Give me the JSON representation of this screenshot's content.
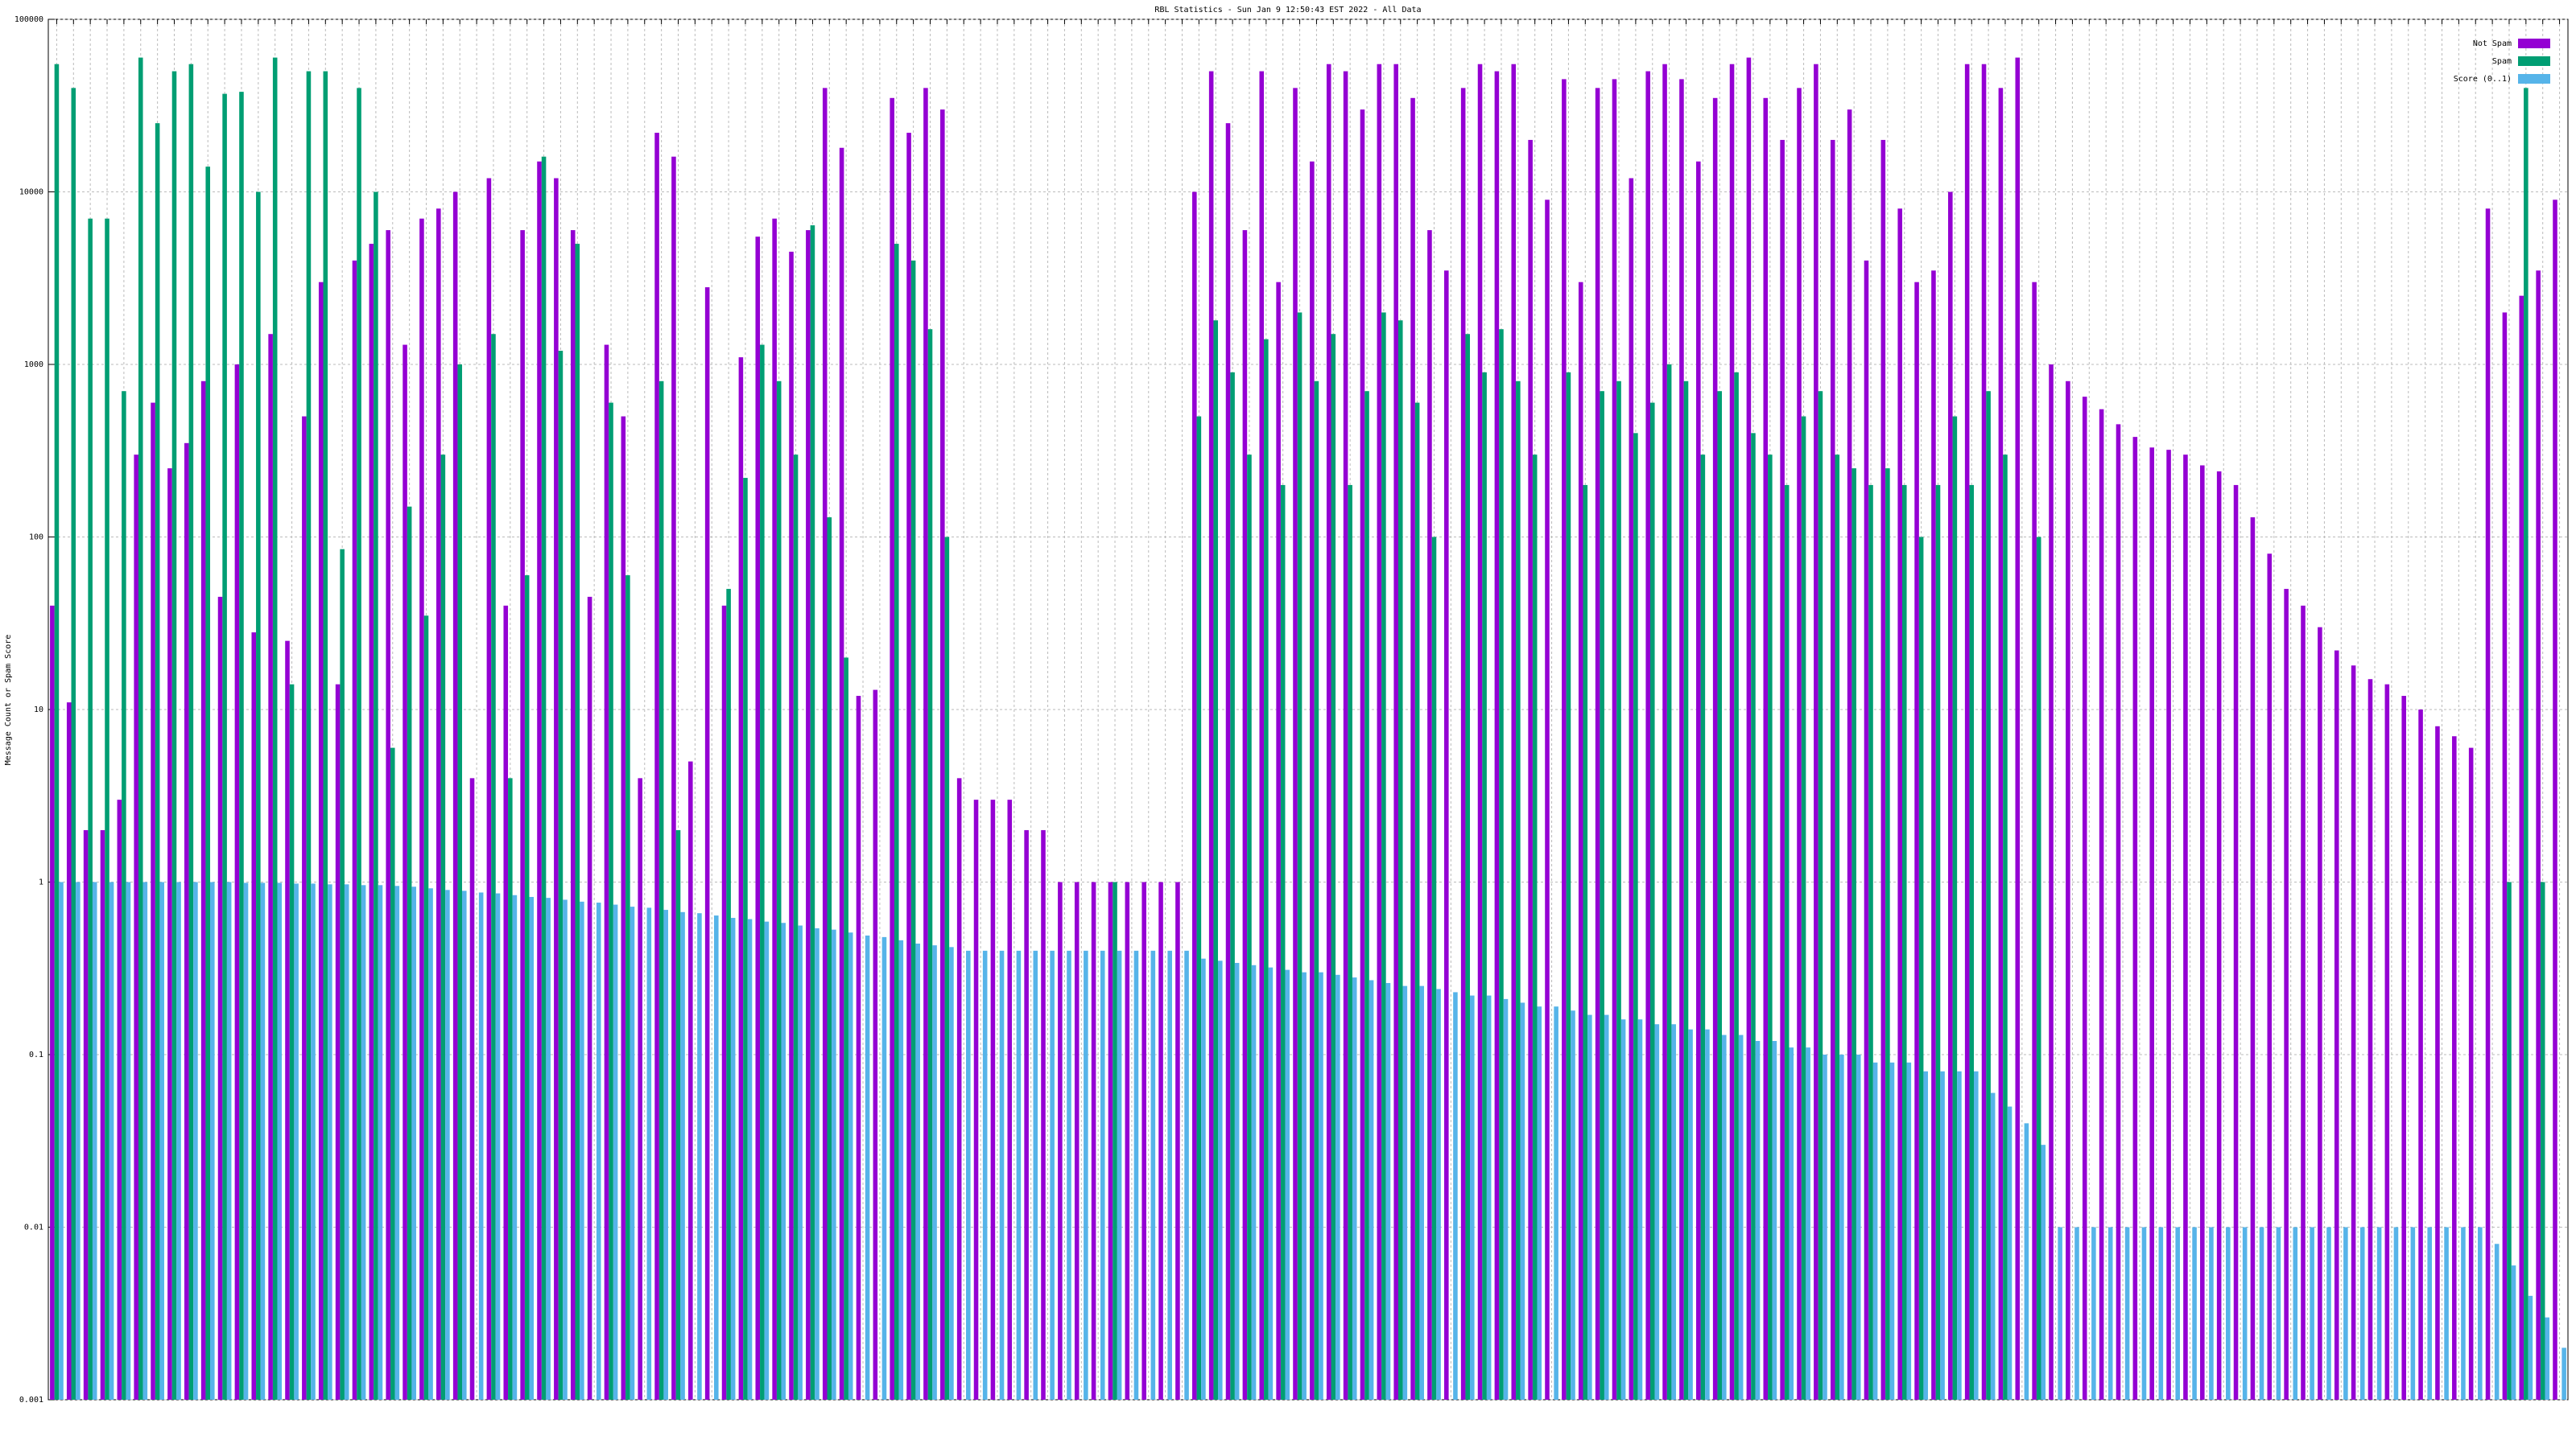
{
  "chart_data": {
    "type": "bar",
    "title": "RBL Statistics - Sun Jan  9 12:50:43 EST 2022 - All Data",
    "y_label": "Message Count or Spam Score",
    "log_scale": true,
    "grid": true,
    "legend": "top-right",
    "ylim": [
      0.001,
      100000
    ],
    "yticks": [
      0.001,
      0.01,
      0.1,
      1,
      10,
      100,
      1000,
      10000,
      100000
    ],
    "categories": [
      null,
      null,
      null,
      null,
      null,
      null,
      null,
      null,
      null,
      null,
      null,
      null,
      null,
      null,
      null,
      null,
      null,
      null,
      null,
      null,
      null,
      null,
      null,
      null,
      null,
      null,
      null,
      null,
      null,
      null,
      null,
      null,
      null,
      null,
      null,
      null,
      null,
      null,
      null,
      null,
      null,
      null,
      null,
      null,
      null,
      null,
      null,
      null,
      null,
      null,
      null,
      null,
      null,
      null,
      null,
      null,
      null,
      null,
      null,
      null,
      null,
      null,
      null,
      null,
      null,
      null,
      null,
      null,
      null,
      null,
      null,
      null,
      null,
      null,
      null,
      null,
      null,
      null,
      null,
      null,
      null,
      null,
      null,
      null,
      null,
      null,
      null,
      null,
      null,
      null,
      null,
      null,
      null,
      null,
      null,
      null,
      null,
      null,
      null,
      null,
      null,
      null,
      null,
      null,
      null,
      null,
      null,
      null,
      null,
      null,
      null,
      null,
      null,
      null,
      null,
      null,
      null,
      null,
      null,
      null,
      null,
      null,
      null,
      null,
      null,
      null,
      null,
      null,
      null,
      null,
      null,
      null,
      null,
      null,
      null,
      null,
      null,
      null,
      null,
      null,
      null,
      null,
      null,
      null,
      null,
      null,
      null,
      null,
      null,
      null
    ],
    "series": [
      {
        "name": "Not Spam",
        "color": "#9400d3",
        "values": [
          40,
          11,
          2,
          2,
          3,
          300,
          600,
          250,
          350,
          800,
          45,
          1000,
          28,
          1500,
          25,
          500,
          3000,
          14,
          4000,
          5000,
          6000,
          1300,
          7000,
          8000,
          10000,
          4,
          12000,
          40,
          6000,
          15000,
          12000,
          6000,
          45,
          1300,
          500,
          4,
          22000,
          16000,
          5,
          2800,
          40,
          1100,
          5500,
          7000,
          4500,
          6000,
          40000,
          18000,
          12,
          13,
          35000,
          22000,
          40000,
          30000,
          4,
          3,
          3,
          3,
          2,
          2,
          1,
          1,
          1,
          1,
          1,
          1,
          1,
          1,
          10000,
          50000,
          25000,
          6000,
          50000,
          3000,
          40000,
          15000,
          55000,
          50000,
          30000,
          55000,
          55000,
          35000,
          6000,
          3500,
          40000,
          55000,
          50000,
          55000,
          20000,
          9000,
          45000,
          3000,
          40000,
          45000,
          12000,
          50000,
          55000,
          45000,
          15000,
          35000,
          55000,
          60000,
          35000,
          20000,
          40000,
          55000,
          20000,
          30000,
          4000,
          20000,
          8000,
          3000,
          3500,
          10000,
          55000,
          55000,
          40000,
          60000,
          3000,
          1000,
          800,
          650,
          550,
          450,
          380,
          330,
          320,
          300,
          260,
          240,
          200,
          130,
          80,
          50,
          40,
          30,
          22,
          18,
          15,
          14,
          12,
          10,
          8,
          7,
          6,
          8000,
          2000,
          2500,
          3500,
          9000
        ]
      },
      {
        "name": "Spam",
        "color": "#009e73",
        "values": [
          55000,
          40000,
          7000,
          7000,
          700,
          60000,
          25000,
          50000,
          55000,
          14000,
          37000,
          38000,
          10000,
          60000,
          14,
          50000,
          50000,
          85,
          40000,
          10000,
          6,
          150,
          35,
          300,
          1000,
          null,
          1500,
          4,
          60,
          16000,
          1200,
          5000,
          null,
          600,
          60,
          null,
          800,
          2,
          null,
          null,
          50,
          220,
          1300,
          800,
          300,
          6400,
          130,
          20,
          null,
          null,
          5000,
          4000,
          1600,
          100,
          null,
          null,
          null,
          null,
          null,
          null,
          null,
          null,
          null,
          1,
          null,
          null,
          null,
          null,
          500,
          1800,
          900,
          300,
          1400,
          200,
          2000,
          800,
          1500,
          200,
          700,
          2000,
          1800,
          600,
          100,
          null,
          1500,
          900,
          1600,
          800,
          300,
          null,
          900,
          200,
          700,
          800,
          400,
          600,
          1000,
          800,
          300,
          700,
          900,
          400,
          300,
          200,
          500,
          700,
          300,
          250,
          200,
          250,
          200,
          100,
          200,
          500,
          200,
          700,
          300,
          null,
          100,
          null,
          null,
          null,
          null,
          null,
          null,
          null,
          null,
          null,
          null,
          null,
          null,
          null,
          null,
          null,
          null,
          null,
          null,
          null,
          null,
          null,
          null,
          null,
          null,
          null,
          null,
          null,
          1,
          40000,
          1,
          null
        ]
      },
      {
        "name": "Score (0..1)",
        "color": "#56b4e9",
        "values": [
          1,
          1,
          1,
          1,
          1,
          1,
          1,
          1,
          1,
          1,
          1,
          0.99,
          0.99,
          0.99,
          0.98,
          0.98,
          0.97,
          0.97,
          0.96,
          0.96,
          0.95,
          0.94,
          0.92,
          0.9,
          0.89,
          0.87,
          0.86,
          0.84,
          0.82,
          0.81,
          0.79,
          0.77,
          0.76,
          0.74,
          0.72,
          0.71,
          0.69,
          0.67,
          0.66,
          0.64,
          0.62,
          0.61,
          0.59,
          0.58,
          0.56,
          0.54,
          0.53,
          0.51,
          0.49,
          0.48,
          0.46,
          0.44,
          0.43,
          0.42,
          0.4,
          0.4,
          0.4,
          0.4,
          0.4,
          0.4,
          0.4,
          0.4,
          0.4,
          0.4,
          0.4,
          0.4,
          0.4,
          0.4,
          0.36,
          0.35,
          0.34,
          0.33,
          0.32,
          0.31,
          0.3,
          0.3,
          0.29,
          0.28,
          0.27,
          0.26,
          0.25,
          0.25,
          0.24,
          0.23,
          0.22,
          0.22,
          0.21,
          0.2,
          0.19,
          0.19,
          0.18,
          0.17,
          0.17,
          0.16,
          0.16,
          0.15,
          0.15,
          0.14,
          0.14,
          0.13,
          0.13,
          0.12,
          0.12,
          0.11,
          0.11,
          0.1,
          0.1,
          0.1,
          0.09,
          0.09,
          0.09,
          0.08,
          0.08,
          0.08,
          0.08,
          0.06,
          0.05,
          0.04,
          0.03,
          0.01,
          0.01,
          0.01,
          0.01,
          0.01,
          0.01,
          0.01,
          0.01,
          0.01,
          0.01,
          0.01,
          0.01,
          0.01,
          0.01,
          0.01,
          0.01,
          0.01,
          0.01,
          0.01,
          0.01,
          0.01,
          0.01,
          0.01,
          0.01,
          0.01,
          0.01,
          0.008,
          0.006,
          0.004,
          0.003,
          0.002
        ]
      }
    ]
  }
}
